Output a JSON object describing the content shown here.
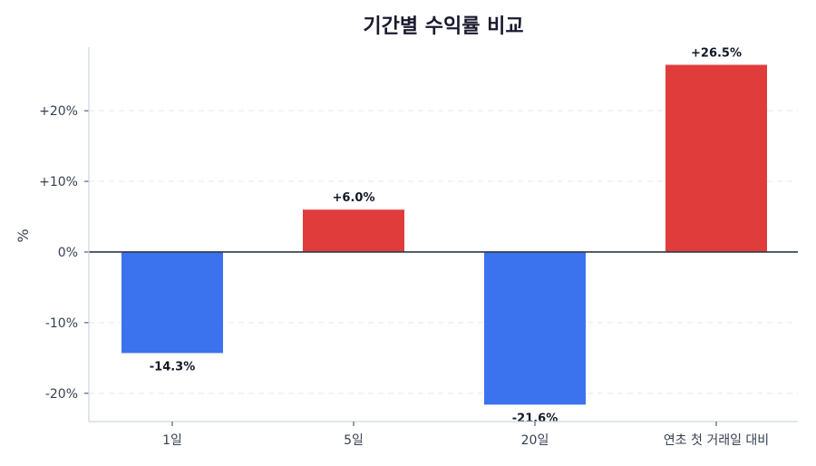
{
  "chart_data": {
    "type": "bar",
    "title": "기간별 수익률 비교",
    "xlabel": "",
    "ylabel": "%",
    "categories": [
      "1일",
      "5일",
      "20일",
      "연초 첫 거래일 대비"
    ],
    "values": [
      -14.3,
      6.0,
      -21.6,
      26.5
    ],
    "value_labels": [
      "-14.3%",
      "+6.0%",
      "-21.6%",
      "+26.5%"
    ],
    "ylim": [
      -24,
      29
    ],
    "yticks": [
      -20,
      -10,
      0,
      10,
      20
    ],
    "ytick_labels": [
      "-20%",
      "-10%",
      "0%",
      "+10%",
      "+20%"
    ],
    "grid": {
      "y": true,
      "style": "dashed"
    },
    "legend": null,
    "colors": {
      "positive": "#e03c3c",
      "negative": "#3b73ee",
      "zero_line": "#2d3748",
      "grid": "#e5e7eb",
      "spine": "#cbd5e1"
    }
  }
}
